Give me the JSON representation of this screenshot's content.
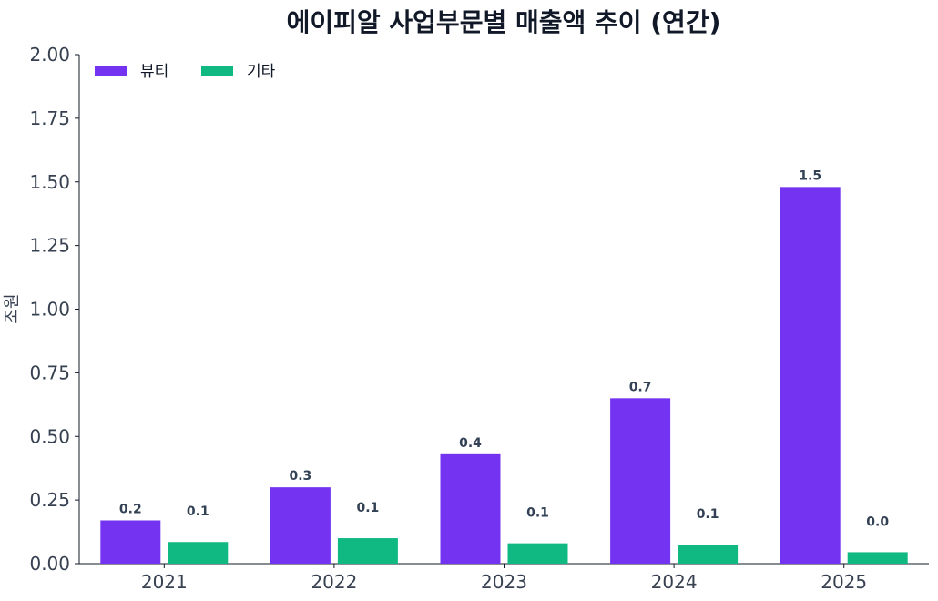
{
  "chart_data": {
    "type": "bar",
    "title": "에이피알 사업부문별 매출액 추이 (연간)",
    "xlabel": "",
    "ylabel": "조원",
    "categories": [
      "2021",
      "2022",
      "2023",
      "2024",
      "2025"
    ],
    "ylim": [
      0,
      2.0
    ],
    "yticks": [
      "0.00",
      "0.25",
      "0.50",
      "0.75",
      "1.00",
      "1.25",
      "1.50",
      "1.75",
      "2.00"
    ],
    "legend_position": "top-left",
    "grid": false,
    "series": [
      {
        "name": "뷰티",
        "color": "#7433F0",
        "values": [
          0.17,
          0.3,
          0.43,
          0.65,
          1.48
        ],
        "labels": [
          "0.2",
          "0.3",
          "0.4",
          "0.7",
          "1.5"
        ]
      },
      {
        "name": "기타",
        "color": "#10B981",
        "values": [
          0.085,
          0.1,
          0.08,
          0.075,
          0.045
        ],
        "labels": [
          "0.1",
          "0.1",
          "0.1",
          "0.1",
          "0.0"
        ]
      }
    ]
  }
}
